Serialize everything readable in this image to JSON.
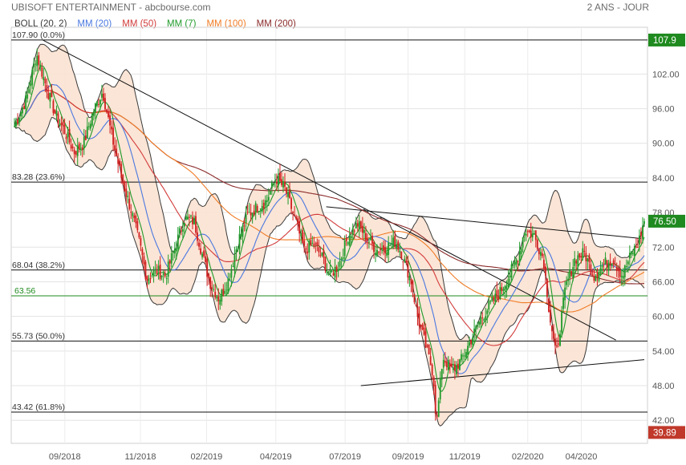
{
  "header": {
    "title": "UBISOFT ENTERTAINMENT - abcbourse.com",
    "period": "2 ANS - JOUR"
  },
  "legend": [
    {
      "label": "BOLL (20, 2)",
      "color": "#3a3a3a"
    },
    {
      "label": "MM (20)",
      "color": "#4a78e0"
    },
    {
      "label": "MM (50)",
      "color": "#d23a3a"
    },
    {
      "label": "MM (7)",
      "color": "#1f9a2a"
    },
    {
      "label": "MM (100)",
      "color": "#f07b25"
    },
    {
      "label": "MM (200)",
      "color": "#8b2a2a"
    }
  ],
  "chart_data": {
    "type": "candlestick",
    "title": "UBISOFT ENTERTAINMENT - abcbourse.com",
    "period": "2 ANS - JOUR",
    "ylim": [
      38,
      109
    ],
    "y_ticks": [
      42.0,
      48.0,
      54.0,
      60.0,
      66.0,
      72.0,
      78.0,
      84.0,
      90.0,
      96.0,
      102.0
    ],
    "x_ticks": [
      "09/2018",
      "11/2018",
      "02/2019",
      "04/2019",
      "07/2019",
      "09/2019",
      "11/2019",
      "02/2020",
      "04/2020"
    ],
    "fibonacci": [
      {
        "label": "107.90  (0.0%)",
        "value": 107.9
      },
      {
        "label": "83.28  (23.6%)",
        "value": 83.28
      },
      {
        "label": "68.04  (38.2%)",
        "value": 68.04
      },
      {
        "label": "55.73  (50.0%)",
        "value": 55.73
      },
      {
        "label": "43.42  (61.8%)",
        "value": 43.42
      }
    ],
    "support_line": {
      "label": "63.56",
      "value": 63.56,
      "color": "#1f8a1f"
    },
    "price_tags": [
      {
        "label": "107.9",
        "value": 107.9,
        "color": "#1f8a1f"
      },
      {
        "label": "76.50",
        "value": 76.5,
        "color": "#1f8a1f"
      },
      {
        "label": "39.89",
        "value": 39.89,
        "color": "#c0392b"
      }
    ],
    "price_path": [
      [
        0,
        93.0
      ],
      [
        0.02,
        98.0
      ],
      [
        0.035,
        105.5
      ],
      [
        0.05,
        100.0
      ],
      [
        0.065,
        95.0
      ],
      [
        0.08,
        92.0
      ],
      [
        0.095,
        88.5
      ],
      [
        0.11,
        90.0
      ],
      [
        0.125,
        95.5
      ],
      [
        0.14,
        99.0
      ],
      [
        0.155,
        91.0
      ],
      [
        0.17,
        84.0
      ],
      [
        0.185,
        78.5
      ],
      [
        0.2,
        72.0
      ],
      [
        0.21,
        66.5
      ],
      [
        0.225,
        68.0
      ],
      [
        0.24,
        67.0
      ],
      [
        0.255,
        72.0
      ],
      [
        0.27,
        77.0
      ],
      [
        0.285,
        76.5
      ],
      [
        0.3,
        70.0
      ],
      [
        0.31,
        66.0
      ],
      [
        0.325,
        63.0
      ],
      [
        0.34,
        66.5
      ],
      [
        0.355,
        73.0
      ],
      [
        0.37,
        77.5
      ],
      [
        0.385,
        79.0
      ],
      [
        0.4,
        80.0
      ],
      [
        0.415,
        84.0
      ],
      [
        0.43,
        82.0
      ],
      [
        0.445,
        77.0
      ],
      [
        0.46,
        71.5
      ],
      [
        0.475,
        72.5
      ],
      [
        0.49,
        70.0
      ],
      [
        0.5,
        67.0
      ],
      [
        0.515,
        69.0
      ],
      [
        0.53,
        74.0
      ],
      [
        0.545,
        76.0
      ],
      [
        0.56,
        73.5
      ],
      [
        0.575,
        71.5
      ],
      [
        0.59,
        72.0
      ],
      [
        0.605,
        73.0
      ],
      [
        0.615,
        71.0
      ],
      [
        0.63,
        66.0
      ],
      [
        0.64,
        60.0
      ],
      [
        0.655,
        54.0
      ],
      [
        0.665,
        50.0
      ],
      [
        0.67,
        41.0
      ],
      [
        0.68,
        53.0
      ],
      [
        0.695,
        50.5
      ],
      [
        0.71,
        52.5
      ],
      [
        0.725,
        56.0
      ],
      [
        0.74,
        59.5
      ],
      [
        0.755,
        62.0
      ],
      [
        0.77,
        64.0
      ],
      [
        0.785,
        67.0
      ],
      [
        0.8,
        70.5
      ],
      [
        0.81,
        75.0
      ],
      [
        0.825,
        74.0
      ],
      [
        0.84,
        70.0
      ],
      [
        0.85,
        60.0
      ],
      [
        0.86,
        53.0
      ],
      [
        0.875,
        65.0
      ],
      [
        0.89,
        70.0
      ],
      [
        0.905,
        71.0
      ],
      [
        0.92,
        67.0
      ],
      [
        0.935,
        69.0
      ],
      [
        0.95,
        70.0
      ],
      [
        0.965,
        67.0
      ],
      [
        0.98,
        71.0
      ],
      [
        0.99,
        72.5
      ],
      [
        1.0,
        76.5
      ]
    ]
  }
}
